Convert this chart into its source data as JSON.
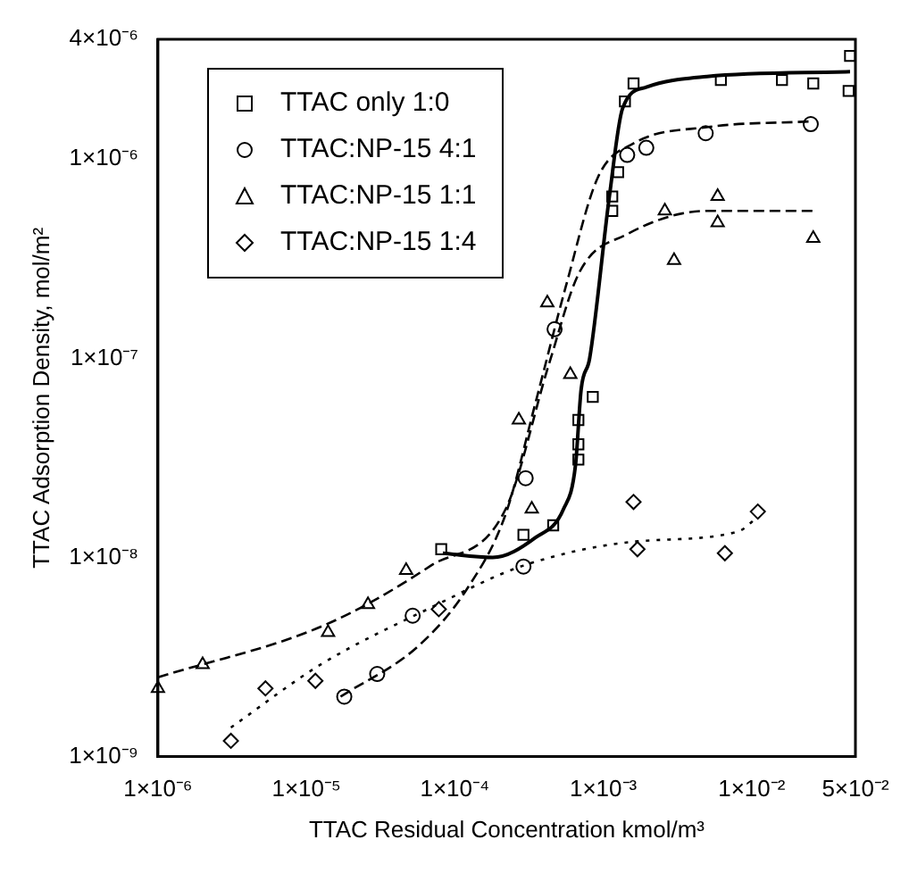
{
  "chart_data": {
    "type": "scatter",
    "xlabel": "TTAC Residual Concentration kmol/m³",
    "ylabel": "TTAC Adsorption Density, mol/m²",
    "log": "xy",
    "grid": false,
    "legend": "top left",
    "xlim": [
      1e-06,
      0.05
    ],
    "ylim": [
      1e-09,
      4e-06
    ],
    "xticks": [
      {
        "value": 1e-06,
        "label": "1×10⁻⁶"
      },
      {
        "value": 1e-05,
        "label": "1×10⁻⁵"
      },
      {
        "value": 0.0001,
        "label": "1×10⁻⁴"
      },
      {
        "value": 0.001,
        "label": "1×10⁻³"
      },
      {
        "value": 0.01,
        "label": "1×10⁻²"
      },
      {
        "value": 0.05,
        "label": "5×10⁻²"
      }
    ],
    "yticks": [
      {
        "value": 1e-09,
        "label": "1×10⁻⁹"
      },
      {
        "value": 1e-08,
        "label": "1×10⁻⁸"
      },
      {
        "value": 1e-07,
        "label": "1×10⁻⁷"
      },
      {
        "value": 1e-06,
        "label": "1×10⁻⁶"
      },
      {
        "value": 4e-06,
        "label": "4×10⁻⁶"
      }
    ],
    "series": [
      {
        "name": "TTAC only 1:0",
        "type": "scatter",
        "marker": "square",
        "color": "#000000",
        "x": [
          0.046,
          0.045,
          0.026,
          0.016,
          0.0062,
          0.0016,
          0.0014,
          0.00126,
          0.00115,
          0.00115,
          0.00085,
          0.00068,
          0.00068,
          0.00068,
          0.00046,
          0.00029,
          8.1e-05
        ],
        "values": [
          3.3e-06,
          2.2e-06,
          2.4e-06,
          2.5e-06,
          2.5e-06,
          2.4e-06,
          1.95e-06,
          8.6e-07,
          6.5e-07,
          5.5e-07,
          6.4e-08,
          4.9e-08,
          3.7e-08,
          3.1e-08,
          1.45e-08,
          1.3e-08,
          1.1e-08
        ]
      },
      {
        "name": "TTAC:NP-15 4:1",
        "type": "scatter",
        "marker": "circle",
        "color": "#000000",
        "x": [
          0.025,
          0.0049,
          0.00195,
          0.00145,
          0.00047,
          0.0003,
          0.00029,
          5.2e-05,
          3e-05,
          1.8e-05
        ],
        "values": [
          1.5e-06,
          1.35e-06,
          1.14e-06,
          1.05e-06,
          1.4e-07,
          2.5e-08,
          9e-09,
          5.1e-09,
          2.6e-09,
          2e-09
        ]
      },
      {
        "name": "TTAC:NP-15 1:1",
        "type": "scatter",
        "marker": "triangle",
        "color": "#000000",
        "x": [
          1e-06,
          2e-06,
          1.4e-05,
          2.6e-05,
          4.7e-05,
          0.00027,
          0.00033,
          0.0006,
          0.00042,
          0.0026,
          0.003,
          0.0059,
          0.0059,
          0.026
        ],
        "values": [
          2.2e-09,
          2.9e-09,
          4.2e-09,
          5.8e-09,
          8.6e-09,
          4.9e-08,
          1.75e-08,
          8.3e-08,
          1.9e-07,
          5.5e-07,
          3.1e-07,
          6.5e-07,
          4.8e-07,
          4e-07
        ]
      },
      {
        "name": "TTAC:NP-15 1:4",
        "type": "scatter",
        "marker": "diamond",
        "color": "#000000",
        "x": [
          3.1e-06,
          5.3e-06,
          1.15e-05,
          7.8e-05,
          0.0016,
          0.0017,
          0.0066,
          0.011
        ],
        "values": [
          1.2e-09,
          2.2e-09,
          2.4e-09,
          5.5e-09,
          1.9e-08,
          1.1e-08,
          1.05e-08,
          1.7e-08
        ]
      },
      {
        "type": "line",
        "line_style": "solid",
        "color": "#000000",
        "x": [
          8.3e-05,
          0.00018,
          0.00035,
          0.00054,
          0.00065,
          0.00071,
          0.00081,
          0.0011,
          0.00135,
          0.00195,
          0.005,
          0.046
        ],
        "values": [
          1.05e-08,
          1e-08,
          1.26e-08,
          1.75e-08,
          2.9e-08,
          7e-08,
          1e-07,
          6.5e-07,
          1.8e-06,
          2.3e-06,
          2.6e-06,
          2.75e-06
        ]
      },
      {
        "type": "line",
        "line_style": "dashed",
        "color": "#000000",
        "x": [
          1.7e-05,
          5.7e-05,
          0.00012,
          0.00022,
          0.00035,
          0.00056,
          0.00092,
          0.0016,
          0.0051,
          0.026
        ],
        "values": [
          2e-09,
          3.6e-09,
          6.9e-09,
          1.65e-08,
          6e-08,
          2.3e-07,
          8.1e-07,
          1.2e-06,
          1.45e-06,
          1.55e-06
        ]
      },
      {
        "type": "line",
        "line_style": "dashed",
        "color": "#000000",
        "x": [
          1e-06,
          1.35e-05,
          6.9e-05,
          0.00022,
          0.00043,
          0.00069,
          0.00145,
          0.0051,
          0.026
        ],
        "values": [
          2.5e-09,
          4.6e-09,
          9.1e-09,
          1.75e-08,
          9.3e-08,
          2.7e-07,
          4.2e-07,
          5.5e-07,
          5.5e-07
        ]
      },
      {
        "type": "line",
        "line_style": "dotted",
        "color": "#000000",
        "x": [
          3.1e-06,
          1.25e-05,
          6.9e-05,
          0.00029,
          0.0016,
          0.0081,
          0.011
        ],
        "values": [
          1.4e-09,
          2.9e-09,
          5.6e-09,
          9.1e-09,
          1.2e-08,
          1.35e-08,
          1.6e-08
        ]
      }
    ]
  }
}
